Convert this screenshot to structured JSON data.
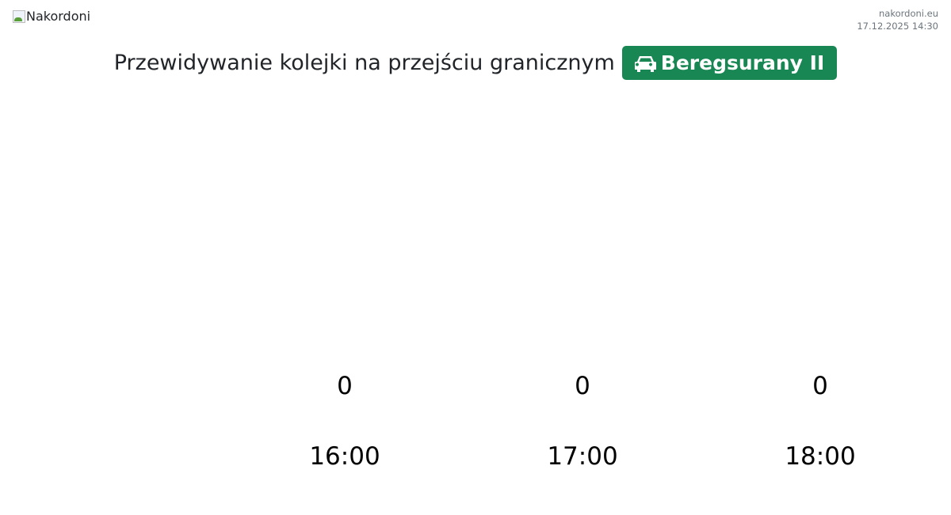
{
  "header": {
    "logo_alt": "Nakordoni",
    "site": "nakordoni.eu",
    "timestamp": "17.12.2025 14:30"
  },
  "title": {
    "text": "Przewidywanie kolejki na przejściu granicznym",
    "crossing": "Beregsurany II",
    "crossing_icon": "car-icon",
    "accent": "#198754"
  },
  "chart_data": {
    "type": "bar",
    "categories": [
      "16:00",
      "17:00",
      "18:00"
    ],
    "values": [
      0,
      0,
      0
    ],
    "title": "",
    "xlabel": "",
    "ylabel": "",
    "grid": false
  }
}
